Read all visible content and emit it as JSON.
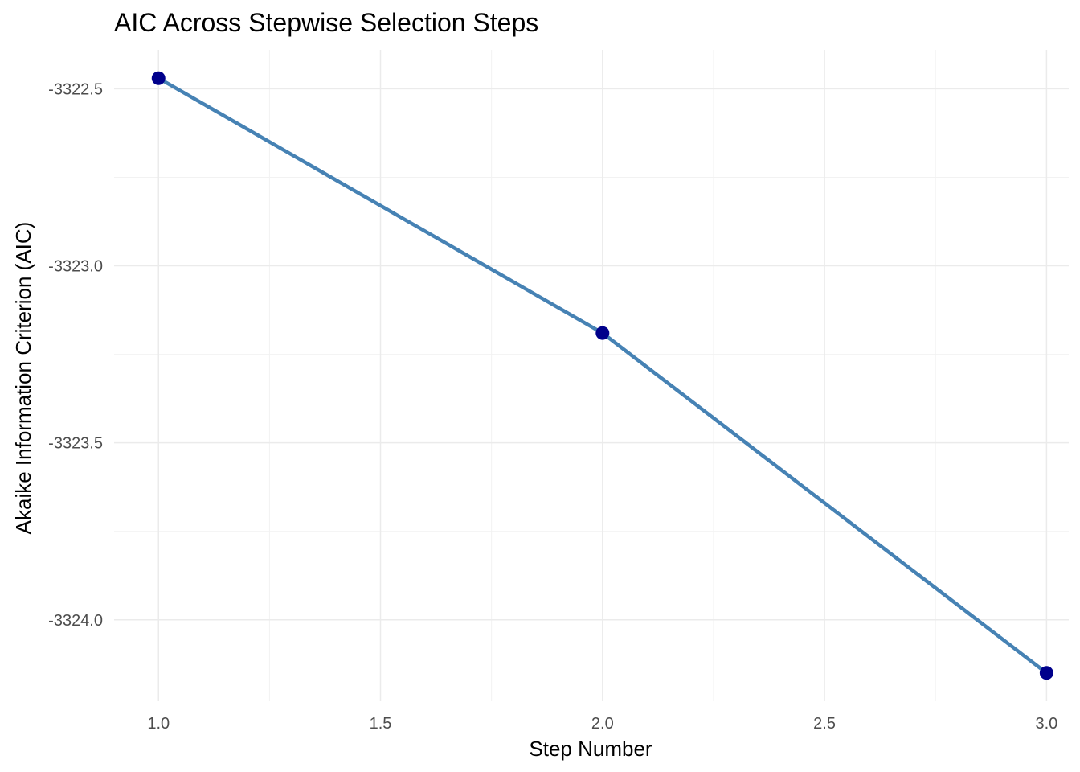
{
  "chart_data": {
    "type": "line",
    "title": "AIC Across Stepwise Selection Steps",
    "xlabel": "Step Number",
    "ylabel": "Akaike Information Criterion (AIC)",
    "x": [
      1,
      2,
      3
    ],
    "y": [
      -3322.47,
      -3323.19,
      -3324.15
    ],
    "xlim": [
      0.9,
      3.05
    ],
    "ylim": [
      -3324.23,
      -3322.39
    ],
    "x_ticks": [
      1.0,
      1.5,
      2.0,
      2.5,
      3.0
    ],
    "x_tick_labels": [
      "1.0",
      "1.5",
      "2.0",
      "2.5",
      "3.0"
    ],
    "y_ticks": [
      -3322.5,
      -3323.0,
      -3323.5,
      -3324.0
    ],
    "y_tick_labels": [
      "-3322.5",
      "-3323.0",
      "-3323.5",
      "-3324.0"
    ],
    "grid": true,
    "line_color": "#4682B4",
    "point_color": "#00008B"
  }
}
